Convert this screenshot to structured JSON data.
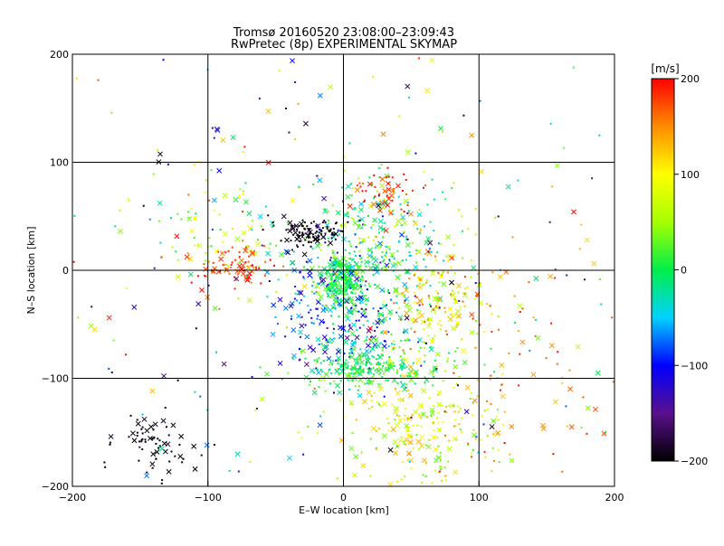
{
  "chart_data": {
    "type": "scatter",
    "title_line1": "Tromsø 20160520 23:08:00–23:09:43",
    "title_line2": "RwPretec (8p) EXPERIMENTAL SKYMAP",
    "xlabel": "E–W location [km]",
    "ylabel": "N–S location [km]",
    "xlim": [
      -200,
      200
    ],
    "ylim": [
      -200,
      200
    ],
    "xticks": [
      -200,
      -100,
      0,
      100,
      200
    ],
    "yticks": [
      -200,
      -100,
      0,
      100,
      200
    ],
    "grid": true,
    "colorbar": {
      "label": "[m/s]",
      "range": [
        -200,
        200
      ],
      "ticks": [
        200,
        100,
        0,
        -100,
        -200
      ]
    },
    "markers": [
      "dot",
      "x"
    ],
    "clusters": [
      {
        "cx": 0,
        "cy": -10,
        "sx": 8,
        "sy": 12,
        "n": 200,
        "vmin": -20,
        "vmax": 30
      },
      {
        "cx": 15,
        "cy": -50,
        "sx": 20,
        "sy": 30,
        "n": 200,
        "vmin": -150,
        "vmax": 30
      },
      {
        "cx": 20,
        "cy": -90,
        "sx": 25,
        "sy": 10,
        "n": 230,
        "vmin": -30,
        "vmax": 40
      },
      {
        "cx": 60,
        "cy": -150,
        "sx": 30,
        "sy": 30,
        "n": 230,
        "vmin": 20,
        "vmax": 140
      },
      {
        "cx": 20,
        "cy": 30,
        "sx": 30,
        "sy": 30,
        "n": 260,
        "vmin": -60,
        "vmax": 80
      },
      {
        "cx": 65,
        "cy": -30,
        "sx": 20,
        "sy": 25,
        "n": 170,
        "vmin": 30,
        "vmax": 180
      },
      {
        "cx": -25,
        "cy": 35,
        "sx": 12,
        "sy": 6,
        "n": 110,
        "vmin": -220,
        "vmax": -170
      },
      {
        "cx": -20,
        "cy": -40,
        "sx": 15,
        "sy": 30,
        "n": 90,
        "vmin": -150,
        "vmax": -40
      },
      {
        "cx": -85,
        "cy": 5,
        "sx": 18,
        "sy": 10,
        "n": 80,
        "vmin": 150,
        "vmax": 210
      },
      {
        "cx": -95,
        "cy": 40,
        "sx": 25,
        "sy": 25,
        "n": 70,
        "vmin": -20,
        "vmax": 120
      },
      {
        "cx": -140,
        "cy": -160,
        "sx": 15,
        "sy": 20,
        "n": 70,
        "vmin": -220,
        "vmax": -180
      },
      {
        "cx": 30,
        "cy": 70,
        "sx": 12,
        "sy": 10,
        "n": 50,
        "vmin": 150,
        "vmax": 210
      },
      {
        "cx": 130,
        "cy": -100,
        "sx": 35,
        "sy": 60,
        "n": 80,
        "vmin": 120,
        "vmax": 210
      },
      {
        "cx": 0,
        "cy": 0,
        "sx": 120,
        "sy": 120,
        "n": 320,
        "vmin": -200,
        "vmax": 200
      }
    ]
  }
}
